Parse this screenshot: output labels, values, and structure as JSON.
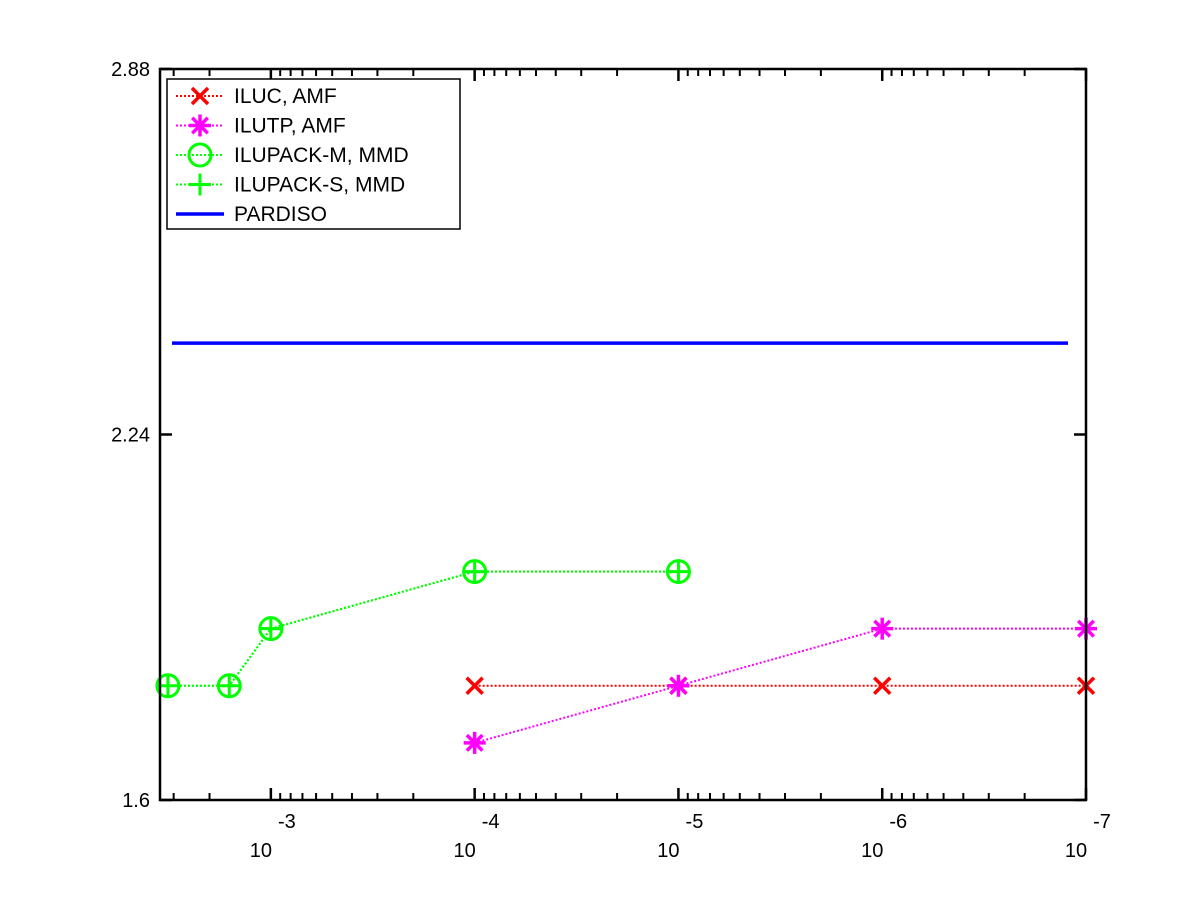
{
  "chart_data": {
    "type": "line",
    "title": "",
    "xlabel": "",
    "ylabel": "",
    "x_scale": "log-reversed",
    "xlim": [
      0.0035,
      1e-07
    ],
    "ylim": [
      1.6,
      2.88
    ],
    "y_ticks": [
      "1.6",
      "2.24",
      "2.88"
    ],
    "x_ticks": [
      {
        "value": 0.001,
        "base": "10",
        "exponent": "-3"
      },
      {
        "value": 0.0001,
        "base": "10",
        "exponent": "-4"
      },
      {
        "value": 1e-05,
        "base": "10",
        "exponent": "-5"
      },
      {
        "value": 1e-06,
        "base": "10",
        "exponent": "-6"
      },
      {
        "value": 1e-07,
        "base": "10",
        "exponent": "-7"
      }
    ],
    "legend_position": "top-left",
    "grid": false,
    "series": [
      {
        "name": "ILUC, AMF",
        "color": "#ff0000",
        "marker": "x",
        "line": "dotted",
        "points": [
          [
            0.0001,
            1.8
          ],
          [
            1e-05,
            1.8
          ],
          [
            1e-06,
            1.8
          ],
          [
            1e-07,
            1.8
          ]
        ]
      },
      {
        "name": "ILUTP, AMF",
        "color": "#ff00ff",
        "marker": "star",
        "line": "dotted",
        "points": [
          [
            0.0001,
            1.7
          ],
          [
            1e-05,
            1.8
          ],
          [
            1e-06,
            1.9
          ],
          [
            1e-07,
            1.9
          ]
        ]
      },
      {
        "name": "ILUPACK-M, MMD",
        "color": "#00ff00",
        "marker": "circle",
        "line": "dotted",
        "points": [
          [
            0.0032,
            1.8
          ],
          [
            0.0016,
            1.8
          ],
          [
            0.001,
            1.9
          ],
          [
            0.0001,
            2.0
          ],
          [
            1e-05,
            2.0
          ]
        ]
      },
      {
        "name": "ILUPACK-S, MMD",
        "color": "#00ff00",
        "marker": "plus",
        "line": "dotted",
        "points": [
          [
            0.0032,
            1.8
          ],
          [
            0.0016,
            1.8
          ],
          [
            0.001,
            1.9
          ],
          [
            0.0001,
            2.0
          ],
          [
            1e-05,
            2.0
          ]
        ]
      },
      {
        "name": "PARDISO",
        "color": "#0000ff",
        "marker": "none",
        "line": "solid",
        "points": [
          [
            0.0032,
            2.4
          ],
          [
            1e-07,
            2.4
          ]
        ]
      }
    ]
  }
}
